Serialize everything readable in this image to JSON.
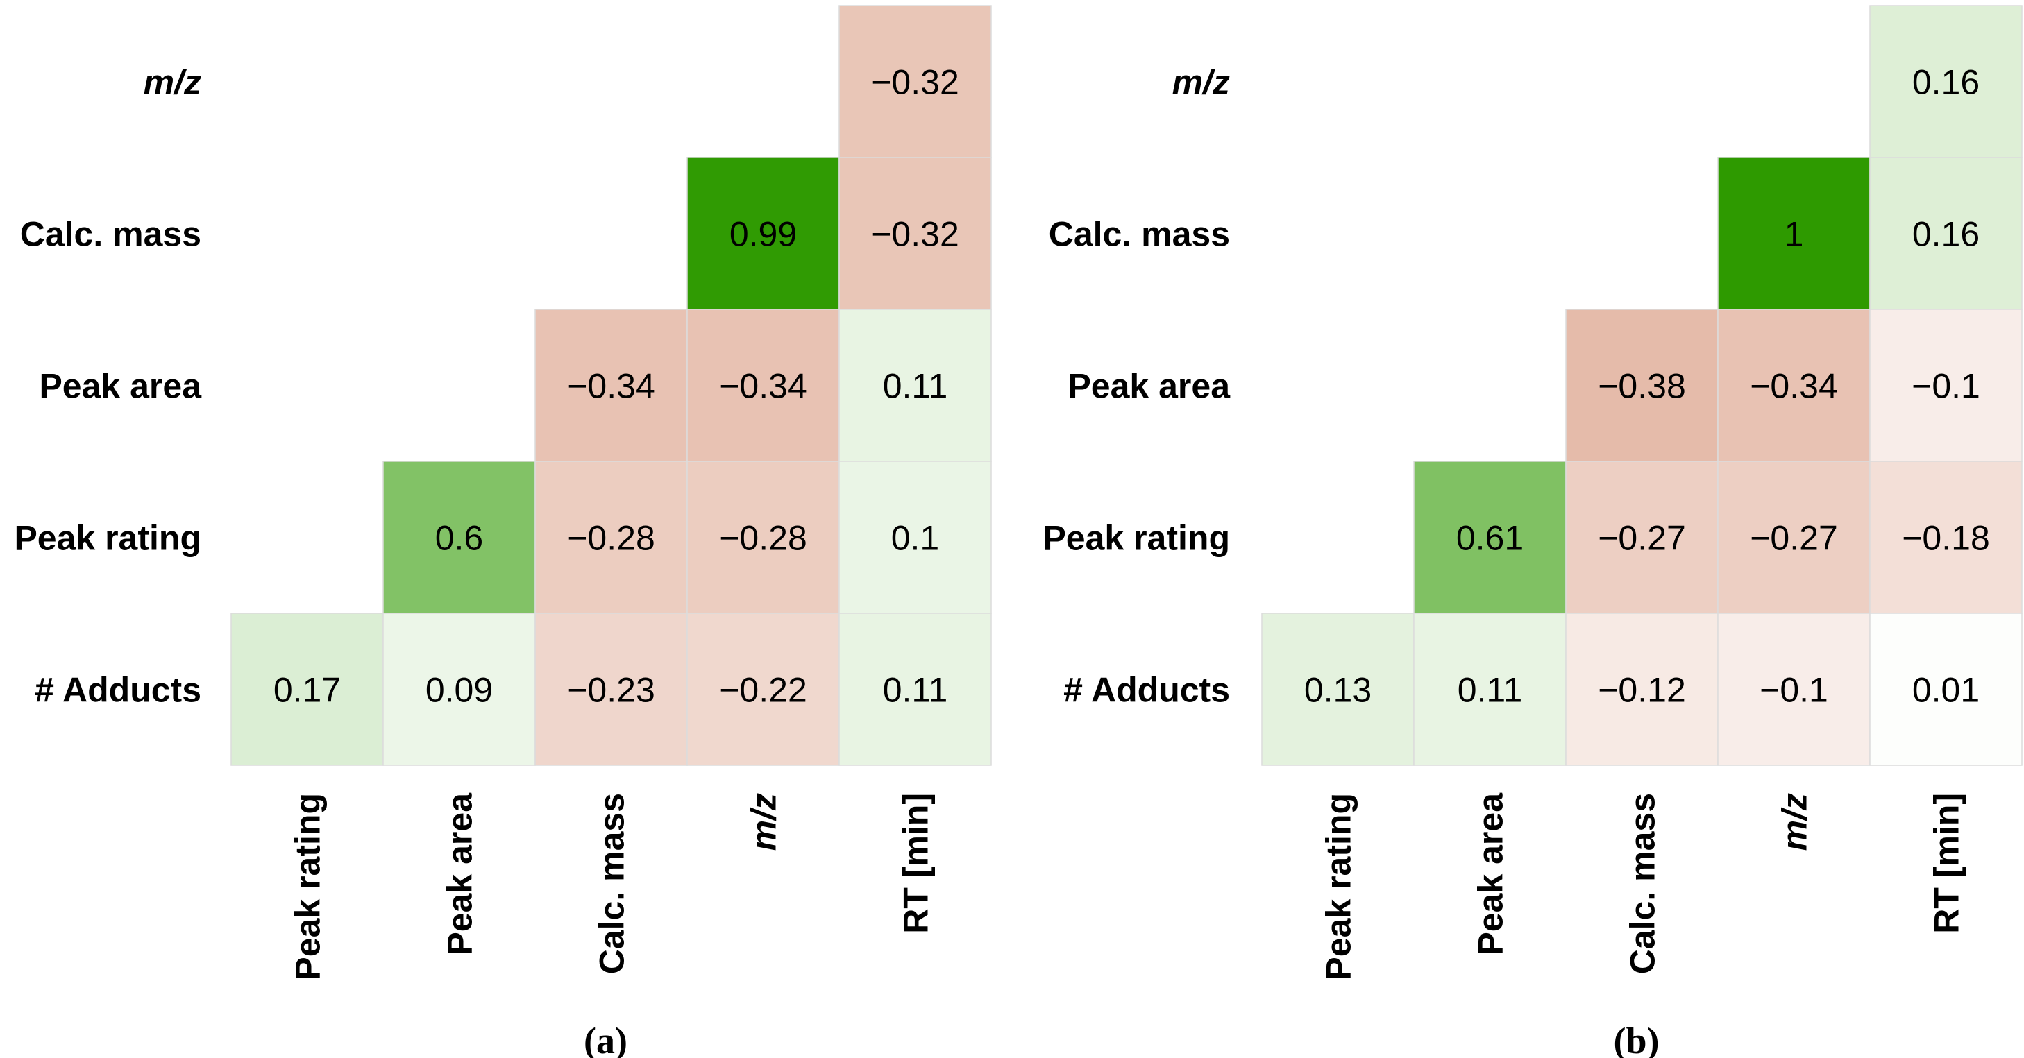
{
  "chart_data": [
    {
      "type": "heatmap",
      "caption": "(a)",
      "row_labels": [
        "m/z",
        "Calc. mass",
        "Peak area",
        "Peak rating",
        "# Adducts"
      ],
      "col_labels": [
        "Peak rating",
        "Peak area",
        "Calc. mass",
        "m/z",
        "RT [min]"
      ],
      "italic_labels": [
        "m/z"
      ],
      "values": [
        [
          null,
          null,
          null,
          null,
          -0.32
        ],
        [
          null,
          null,
          null,
          0.99,
          -0.32
        ],
        [
          null,
          null,
          -0.34,
          -0.34,
          0.11
        ],
        [
          null,
          0.6,
          -0.28,
          -0.28,
          0.1
        ],
        [
          0.17,
          0.09,
          -0.23,
          -0.22,
          0.11
        ]
      ],
      "value_labels": [
        [
          null,
          null,
          null,
          null,
          "−0.32"
        ],
        [
          null,
          null,
          null,
          "0.99",
          "−0.32"
        ],
        [
          null,
          null,
          "−0.34",
          "−0.34",
          "0.11"
        ],
        [
          null,
          "0.6",
          "−0.28",
          "−0.28",
          "0.1"
        ],
        [
          "0.17",
          "0.09",
          "−0.23",
          "−0.22",
          "0.11"
        ]
      ],
      "color_positive": "#2e9a00",
      "color_negative": "#c9704c",
      "color_zero": "#ffffff",
      "value_range": [
        -1,
        1
      ]
    },
    {
      "type": "heatmap",
      "caption": "(b)",
      "row_labels": [
        "m/z",
        "Calc. mass",
        "Peak area",
        "Peak rating",
        "# Adducts"
      ],
      "col_labels": [
        "Peak rating",
        "Peak area",
        "Calc. mass",
        "m/z",
        "RT [min]"
      ],
      "italic_labels": [
        "m/z"
      ],
      "values": [
        [
          null,
          null,
          null,
          null,
          0.16
        ],
        [
          null,
          null,
          null,
          1,
          0.16
        ],
        [
          null,
          null,
          -0.38,
          -0.34,
          -0.1
        ],
        [
          null,
          0.61,
          -0.27,
          -0.27,
          -0.18
        ],
        [
          0.13,
          0.11,
          -0.12,
          -0.1,
          0.01
        ]
      ],
      "value_labels": [
        [
          null,
          null,
          null,
          null,
          "0.16"
        ],
        [
          null,
          null,
          null,
          "1",
          "0.16"
        ],
        [
          null,
          null,
          "−0.38",
          "−0.34",
          "−0.1"
        ],
        [
          null,
          "0.61",
          "−0.27",
          "−0.27",
          "−0.18"
        ],
        [
          "0.13",
          "0.11",
          "−0.12",
          "−0.1",
          "0.01"
        ]
      ],
      "color_positive": "#2e9a00",
      "color_negative": "#c9704c",
      "color_zero": "#ffffff",
      "value_range": [
        -1,
        1
      ]
    }
  ]
}
